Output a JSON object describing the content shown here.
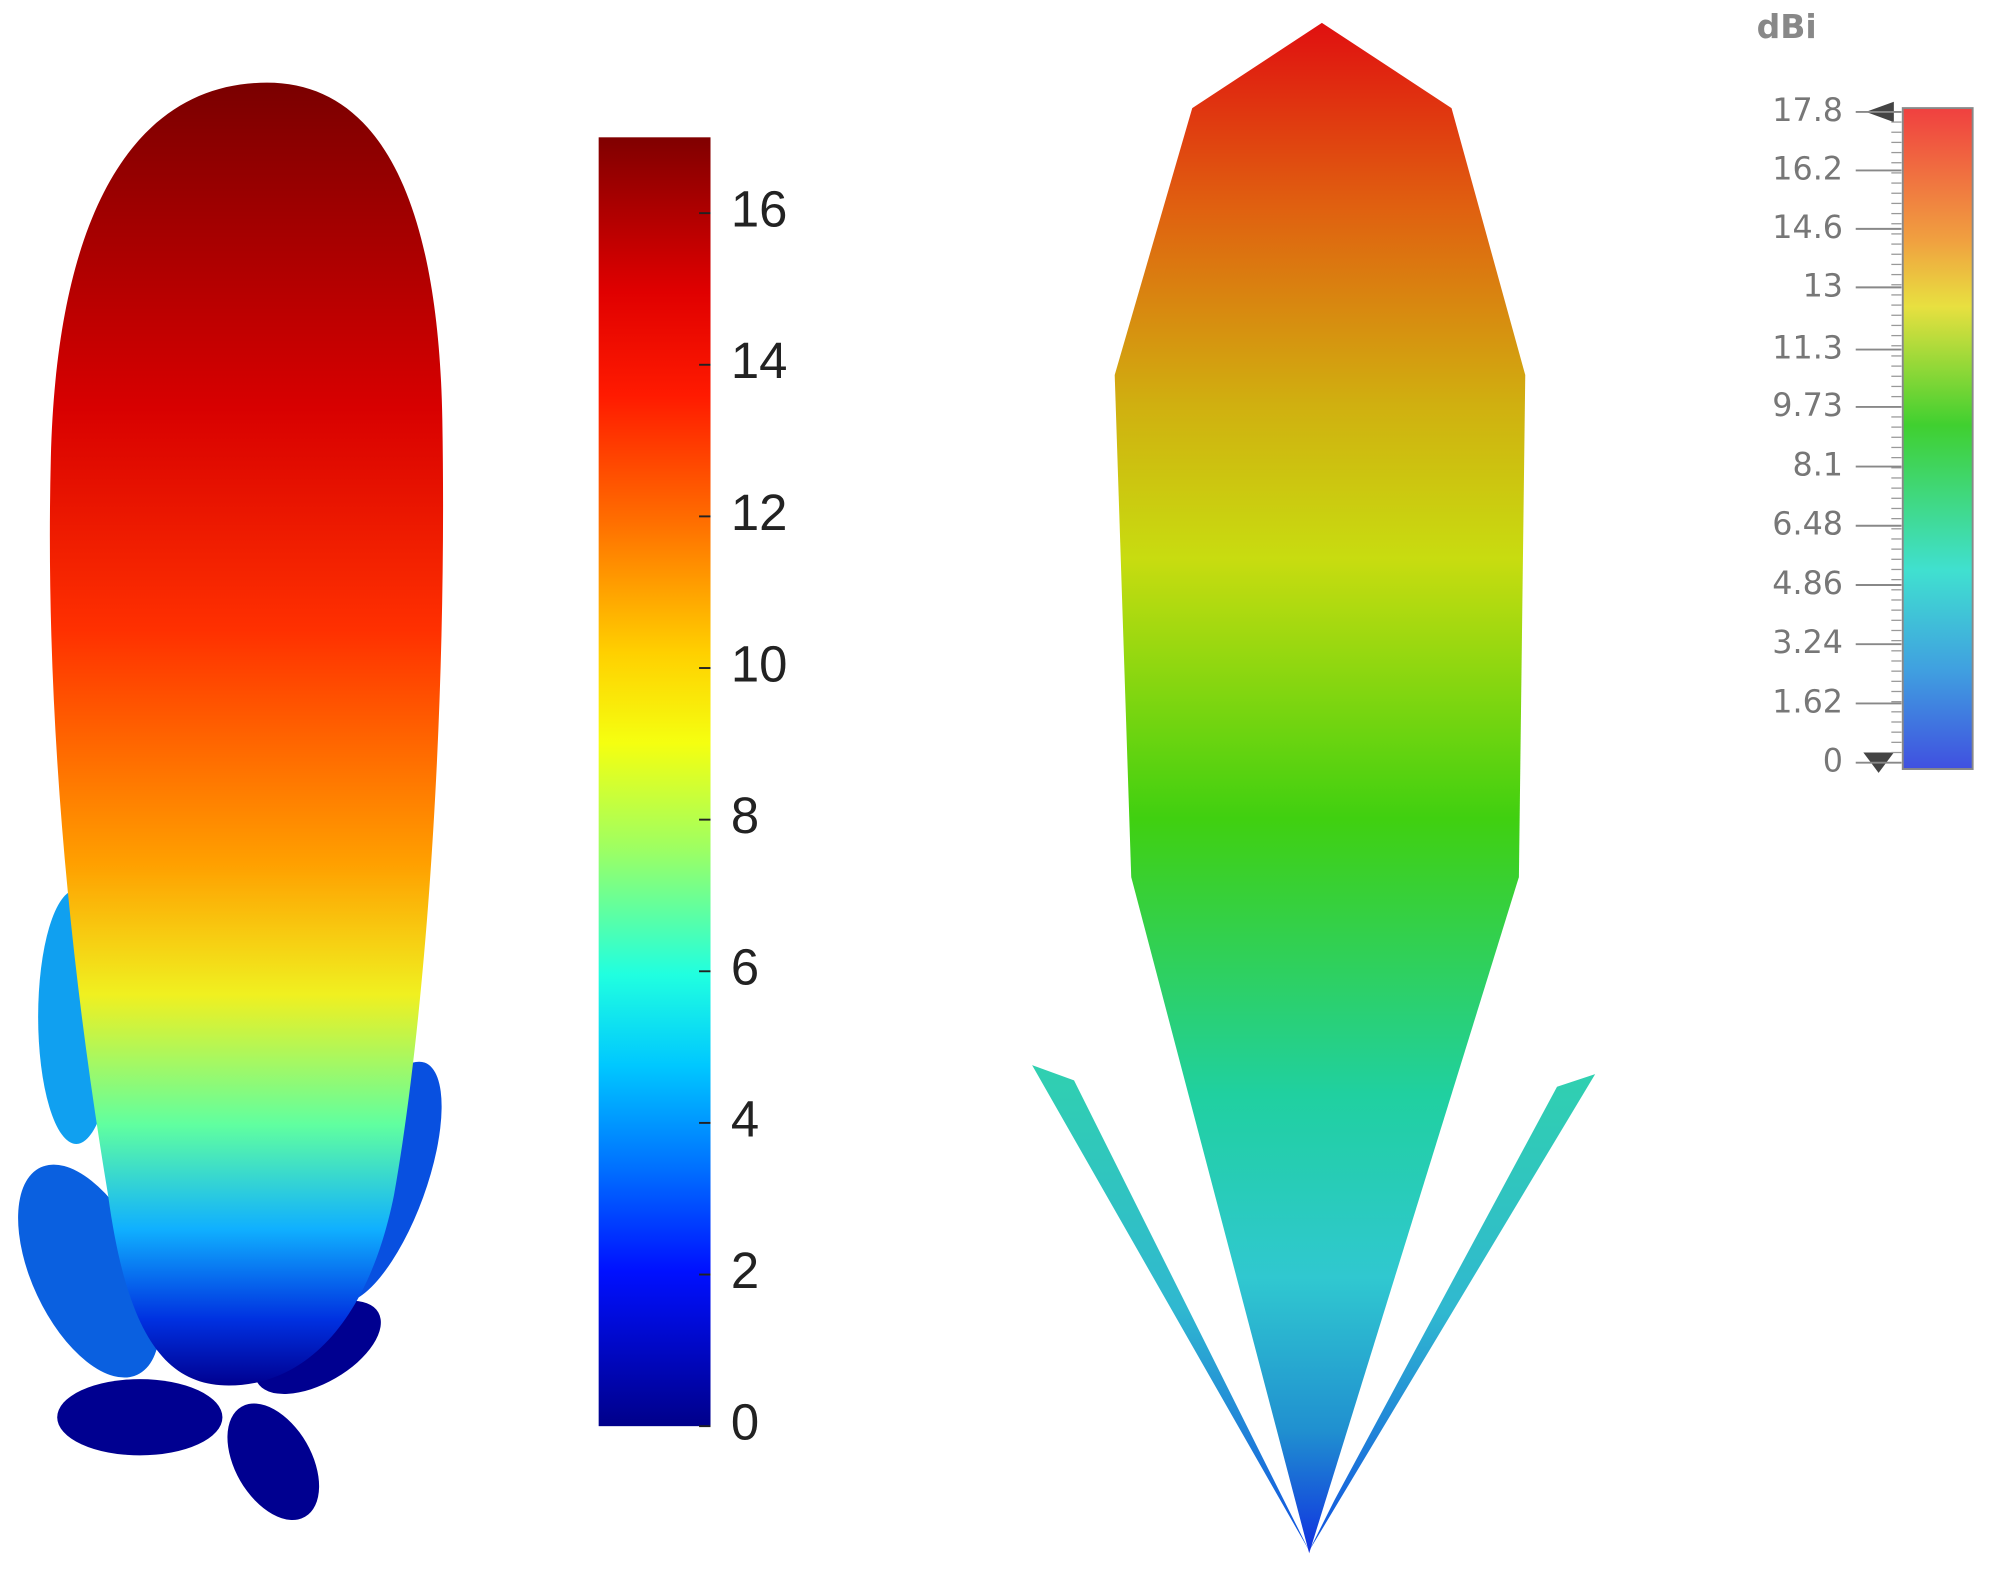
{
  "left_colorbar": {
    "lim": [
      0,
      17
    ],
    "ticks": [
      0,
      2,
      4,
      6,
      8,
      10,
      12,
      14,
      16
    ]
  },
  "right_colorbar": {
    "title": "dBi",
    "lim": [
      0,
      17.8
    ],
    "ticks": [
      0,
      1.62,
      3.24,
      4.86,
      6.48,
      8.1,
      9.73,
      11.3,
      13,
      14.6,
      16.2,
      17.8
    ]
  }
}
